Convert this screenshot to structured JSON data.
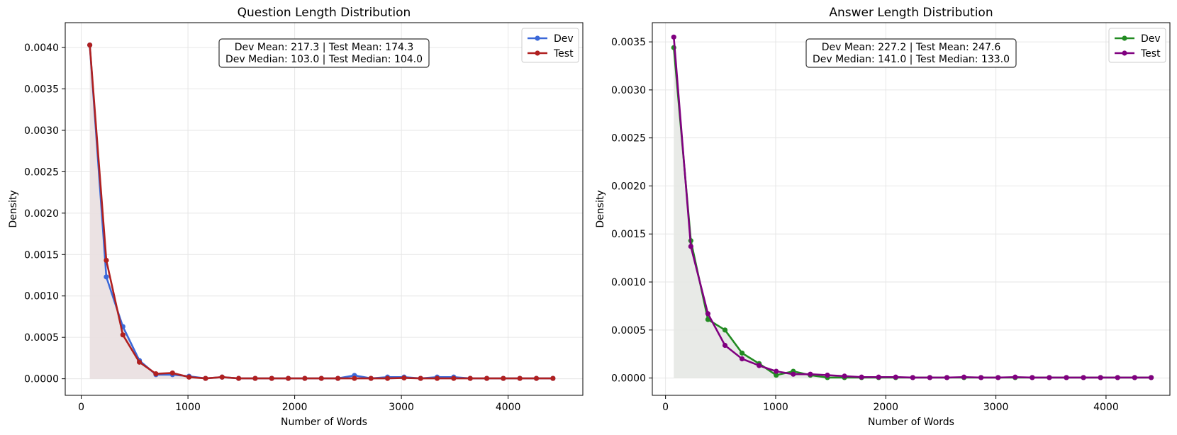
{
  "chart_data": [
    {
      "type": "line",
      "title": "Question Length Distribution",
      "xlabel": "Number of Words",
      "ylabel": "Density",
      "xlim": [
        -150,
        4700
      ],
      "ylim": [
        -0.0002,
        0.0043
      ],
      "xticks": [
        "0",
        "1000",
        "2000",
        "3000",
        "4000"
      ],
      "yticks": [
        "0.0000",
        "0.0005",
        "0.0010",
        "0.0015",
        "0.0020",
        "0.0025",
        "0.0030",
        "0.0035",
        "0.0040"
      ],
      "grid": true,
      "legend_position": "top-right",
      "stats": [
        "Dev Mean: 217.3 | Test Mean: 174.3",
        "Dev Median: 103.0 | Test Median: 104.0"
      ],
      "fill_color": "#e9dfe0",
      "series": [
        {
          "name": "Dev",
          "color": "#3b68d8",
          "x": [
            80,
            235,
            390,
            545,
            700,
            855,
            1010,
            1165,
            1320,
            1475,
            1630,
            1785,
            1940,
            2095,
            2250,
            2405,
            2560,
            2715,
            2870,
            3025,
            3180,
            3335,
            3490,
            3645,
            3800,
            3955,
            4110,
            4265,
            4420
          ],
          "y": [
            0.00403,
            0.00123,
            0.00063,
            0.00022,
            5e-05,
            5e-05,
            3e-05,
            5e-06,
            2e-05,
            5e-06,
            5e-06,
            5e-06,
            5e-06,
            5e-06,
            5e-06,
            5e-06,
            4e-05,
            5e-06,
            2e-05,
            2e-05,
            5e-06,
            2e-05,
            2e-05,
            5e-06,
            5e-06,
            5e-06,
            5e-06,
            5e-06,
            5e-06
          ]
        },
        {
          "name": "Test",
          "color": "#b02020",
          "x": [
            80,
            235,
            390,
            545,
            700,
            855,
            1010,
            1165,
            1320,
            1475,
            1630,
            1785,
            1940,
            2095,
            2250,
            2405,
            2560,
            2715,
            2870,
            3025,
            3180,
            3335,
            3490,
            3645,
            3800,
            3955,
            4110,
            4265,
            4420
          ],
          "y": [
            0.00403,
            0.00143,
            0.00053,
            0.0002,
            6e-05,
            7e-05,
            2e-05,
            5e-06,
            2e-05,
            5e-06,
            5e-06,
            5e-06,
            5e-06,
            5e-06,
            5e-06,
            5e-06,
            5e-06,
            5e-06,
            5e-06,
            1e-05,
            5e-06,
            5e-06,
            5e-06,
            5e-06,
            5e-06,
            5e-06,
            5e-06,
            5e-06,
            5e-06
          ]
        }
      ]
    },
    {
      "type": "line",
      "title": "Answer Length Distribution",
      "xlabel": "Number of Words",
      "ylabel": "Density",
      "xlim": [
        -120,
        4580
      ],
      "ylim": [
        -0.00018,
        0.0037
      ],
      "xticks": [
        "0",
        "1000",
        "2000",
        "3000",
        "4000"
      ],
      "yticks": [
        "0.0000",
        "0.0005",
        "0.0010",
        "0.0015",
        "0.0020",
        "0.0025",
        "0.0030",
        "0.0035"
      ],
      "grid": true,
      "legend_position": "top-right",
      "stats": [
        "Dev Mean: 227.2 | Test Mean: 247.6",
        "Dev Median: 141.0 | Test Median: 133.0"
      ],
      "fill_color": "#e5e8e4",
      "series": [
        {
          "name": "Dev",
          "color": "#228b22",
          "x": [
            75,
            230,
            385,
            540,
            695,
            850,
            1005,
            1160,
            1315,
            1470,
            1625,
            1780,
            1935,
            2090,
            2245,
            2400,
            2555,
            2710,
            2865,
            3020,
            3175,
            3330,
            3485,
            3640,
            3795,
            3950,
            4105,
            4260,
            4410
          ],
          "y": [
            0.00344,
            0.00143,
            0.00061,
            0.0005,
            0.00026,
            0.00015,
            3e-05,
            7e-05,
            3e-05,
            5e-06,
            5e-06,
            5e-06,
            5e-06,
            5e-06,
            5e-06,
            5e-06,
            5e-06,
            5e-06,
            5e-06,
            5e-06,
            5e-06,
            5e-06,
            5e-06,
            5e-06,
            5e-06,
            5e-06,
            5e-06,
            5e-06,
            5e-06
          ]
        },
        {
          "name": "Test",
          "color": "#800080",
          "x": [
            75,
            230,
            385,
            540,
            695,
            850,
            1005,
            1160,
            1315,
            1470,
            1625,
            1780,
            1935,
            2090,
            2245,
            2400,
            2555,
            2710,
            2865,
            3020,
            3175,
            3330,
            3485,
            3640,
            3795,
            3950,
            4105,
            4260,
            4410
          ],
          "y": [
            0.00355,
            0.00137,
            0.00067,
            0.00034,
            0.0002,
            0.00013,
            7e-05,
            4e-05,
            4e-05,
            3e-05,
            2e-05,
            1e-05,
            1e-05,
            1e-05,
            5e-06,
            5e-06,
            5e-06,
            1e-05,
            5e-06,
            5e-06,
            1e-05,
            5e-06,
            5e-06,
            5e-06,
            5e-06,
            5e-06,
            5e-06,
            5e-06,
            5e-06
          ]
        }
      ]
    }
  ]
}
